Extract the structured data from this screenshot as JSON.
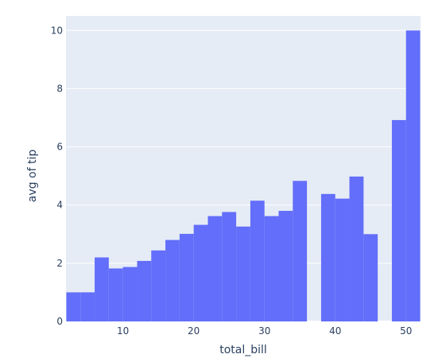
{
  "chart_data": {
    "type": "bar",
    "subtype": "histogram",
    "histfunc": "avg",
    "xlabel": "total_bill",
    "ylabel": "avg of tip",
    "xlim": [
      1.95,
      52.05
    ],
    "ylim": [
      0,
      10.5
    ],
    "bin_width": 2,
    "x_ticks": [
      10,
      20,
      30,
      40,
      50
    ],
    "y_ticks": [
      0,
      2,
      4,
      6,
      8,
      10
    ],
    "grid": true,
    "bins": [
      {
        "x0": 2,
        "x1": 4,
        "value": 1.0
      },
      {
        "x0": 4,
        "x1": 6,
        "value": 1.0
      },
      {
        "x0": 6,
        "x1": 8,
        "value": 2.2
      },
      {
        "x0": 8,
        "x1": 10,
        "value": 1.82
      },
      {
        "x0": 10,
        "x1": 12,
        "value": 1.87
      },
      {
        "x0": 12,
        "x1": 14,
        "value": 2.08
      },
      {
        "x0": 14,
        "x1": 16,
        "value": 2.44
      },
      {
        "x0": 16,
        "x1": 18,
        "value": 2.8
      },
      {
        "x0": 18,
        "x1": 20,
        "value": 3.01
      },
      {
        "x0": 20,
        "x1": 22,
        "value": 3.32
      },
      {
        "x0": 22,
        "x1": 24,
        "value": 3.62
      },
      {
        "x0": 24,
        "x1": 26,
        "value": 3.76
      },
      {
        "x0": 26,
        "x1": 28,
        "value": 3.26
      },
      {
        "x0": 28,
        "x1": 30,
        "value": 4.15
      },
      {
        "x0": 30,
        "x1": 32,
        "value": 3.62
      },
      {
        "x0": 32,
        "x1": 34,
        "value": 3.8
      },
      {
        "x0": 34,
        "x1": 36,
        "value": 4.83
      },
      {
        "x0": 36,
        "x1": 38,
        "value": null
      },
      {
        "x0": 38,
        "x1": 40,
        "value": 4.38
      },
      {
        "x0": 40,
        "x1": 42,
        "value": 4.22
      },
      {
        "x0": 42,
        "x1": 44,
        "value": 4.98
      },
      {
        "x0": 44,
        "x1": 46,
        "value": 3.0
      },
      {
        "x0": 46,
        "x1": 48,
        "value": null
      },
      {
        "x0": 48,
        "x1": 50,
        "value": 6.92
      },
      {
        "x0": 50,
        "x1": 52,
        "value": 10.0
      }
    ]
  },
  "colors": {
    "bar": "#636efa",
    "plot_background": "#e5ecf6",
    "grid": "#ffffff",
    "text": "#2a3f5f"
  }
}
